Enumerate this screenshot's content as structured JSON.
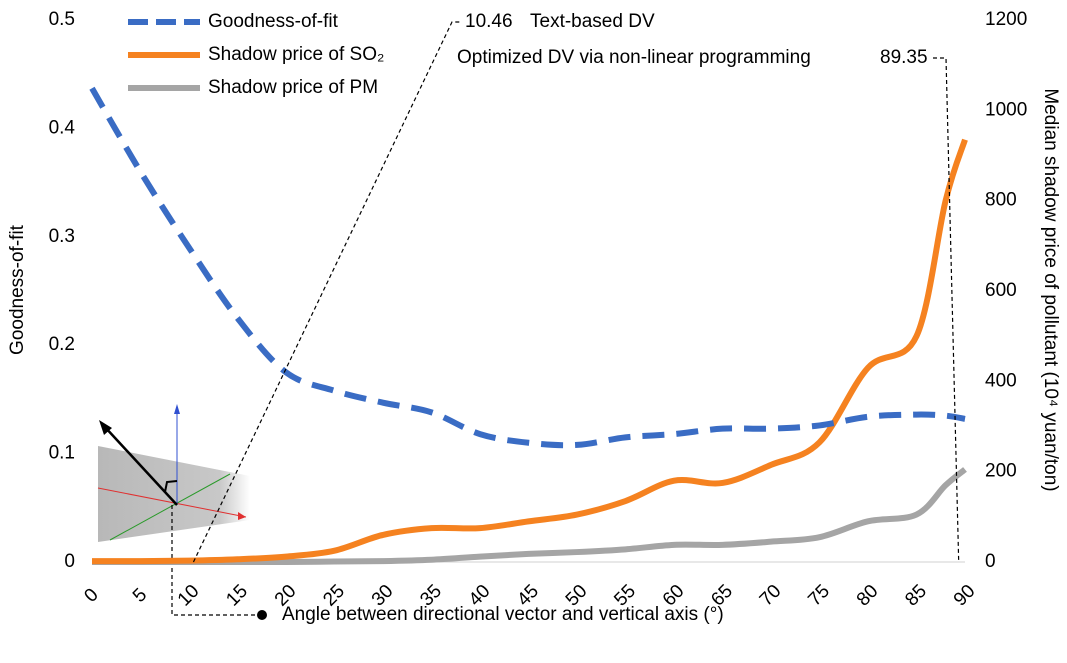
{
  "chart_data": {
    "type": "line",
    "xlabel": "Angle between directional vector and vertical axis (°)",
    "ylabel": "Goodness-of-fit",
    "y2label": "Median shadow price of pollutant (10⁴ yuan/ton)",
    "x": [
      0,
      5,
      10,
      15,
      20,
      25,
      30,
      35,
      40,
      45,
      50,
      55,
      60,
      65,
      70,
      75,
      80,
      85,
      88,
      90
    ],
    "series": [
      {
        "name": "Goodness-of-fit",
        "color": "#3a6cc4",
        "style": "dashed",
        "axis": "y",
        "values": [
          0.437,
          0.36,
          0.29,
          0.225,
          0.175,
          0.158,
          0.147,
          0.138,
          0.118,
          0.11,
          0.108,
          0.115,
          0.118,
          0.123,
          0.123,
          0.126,
          0.134,
          0.136,
          0.135,
          0.132
        ]
      },
      {
        "name": "Shadow price of SO₂",
        "color": "#f58220",
        "style": "solid",
        "axis": "y2",
        "values": [
          2,
          2,
          3,
          6,
          12,
          25,
          60,
          75,
          75,
          90,
          105,
          135,
          180,
          175,
          215,
          265,
          430,
          500,
          800,
          935
        ]
      },
      {
        "name": "Shadow price of PM",
        "color": "#a5a5a5",
        "style": "solid",
        "axis": "y2",
        "values": [
          0,
          0,
          0,
          0,
          0,
          1,
          2,
          5,
          12,
          18,
          22,
          28,
          38,
          38,
          45,
          55,
          90,
          105,
          170,
          205
        ]
      }
    ],
    "xlim": [
      0,
      90
    ],
    "xticks": [
      0,
      5,
      10,
      15,
      20,
      25,
      30,
      35,
      40,
      45,
      50,
      55,
      60,
      65,
      70,
      75,
      80,
      85,
      90
    ],
    "ylim": [
      0,
      0.5
    ],
    "yticks": [
      0,
      0.1,
      0.2,
      0.3,
      0.4,
      0.5
    ],
    "y2lim": [
      0,
      1200
    ],
    "y2ticks": [
      0,
      200,
      400,
      600,
      800,
      1000,
      1200
    ],
    "legend": "top-left",
    "annotations": [
      {
        "label": "Text-based DV",
        "x": 10.46
      },
      {
        "label": "Optimized DV via non-linear programming",
        "x": 89.35
      }
    ]
  }
}
